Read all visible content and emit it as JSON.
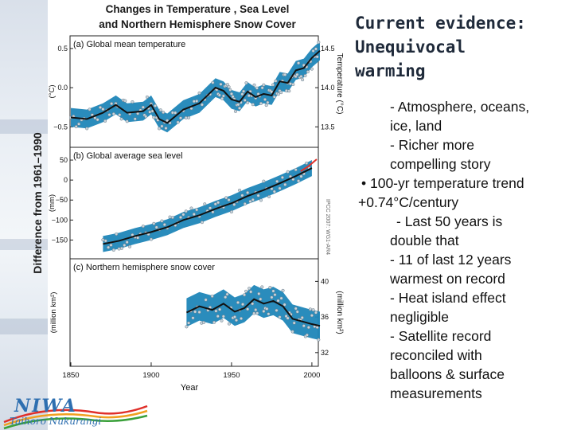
{
  "title": {
    "lines": [
      "Current evidence:",
      "Unequivocal",
      "warming"
    ]
  },
  "bullets": [
    {
      "text": "- Atmosphere, oceans,",
      "level": 2
    },
    {
      "text": "ice, land",
      "level": 2
    },
    {
      "text": "- Richer more",
      "level": 2
    },
    {
      "text": "compelling story",
      "level": 2
    },
    {
      "text": "• 100-yr temperature trend",
      "level": 1
    },
    {
      "text": "+0.74°C/century",
      "level": 0
    },
    {
      "text": "- Last 50 years is",
      "level": 3
    },
    {
      "text": "double that",
      "level": 2
    },
    {
      "text": "- 11 of last 12 years",
      "level": 2
    },
    {
      "text": "warmest on record",
      "level": 2
    },
    {
      "text": "- Heat island effect",
      "level": 2
    },
    {
      "text": "negligible",
      "level": 2
    },
    {
      "text": "- Satellite record",
      "level": 2
    },
    {
      "text": "reconciled with",
      "level": 2
    },
    {
      "text": "balloons & surface",
      "level": 2
    },
    {
      "text": "measurements",
      "level": 2
    }
  ],
  "logo": {
    "name": "NIWA",
    "subtitle": "Taihoro Nukurangi"
  },
  "colors": {
    "band": "#1f86b8",
    "line": "#111111",
    "dots": "#c9d4dc",
    "accent": "#e0302a"
  },
  "chart_data": {
    "type": "line",
    "title_lines": [
      "Changes in Temperature , Sea Level",
      "and Northern Hemisphere Snow Cover"
    ],
    "y_label_shared": "Difference from 1961–1990",
    "xlabel": "Year",
    "x_ticks": [
      1850,
      1900,
      1950,
      2000
    ],
    "xlim": [
      1850,
      2005
    ],
    "watermark": "IPCC 2007: WG1-AR4",
    "panels": [
      {
        "label": "(a) Global mean temperature",
        "ylabel_left": "(°C)",
        "ylabel_right": "Temperature (°C)",
        "ylim": [
          -0.7,
          0.6
        ],
        "left_ticks": [
          {
            "v": 0.5,
            "t": "0.5"
          },
          {
            "v": 0.0,
            "t": "0.0"
          },
          {
            "v": -0.5,
            "t": "−0.5"
          }
        ],
        "right_ticks": [
          {
            "v": 0.5,
            "t": "14.5"
          },
          {
            "v": 0.0,
            "t": "14.0"
          },
          {
            "v": -0.5,
            "t": "13.5"
          }
        ],
        "series": [
          {
            "name": "smoothed",
            "x": [
              1850,
              1860,
              1870,
              1878,
              1885,
              1895,
              1900,
              1905,
              1910,
              1920,
              1930,
              1940,
              1945,
              1950,
              1955,
              1960,
              1965,
              1970,
              1975,
              1980,
              1985,
              1990,
              1995,
              2000,
              2005
            ],
            "y": [
              -0.38,
              -0.4,
              -0.32,
              -0.22,
              -0.32,
              -0.3,
              -0.22,
              -0.4,
              -0.45,
              -0.28,
              -0.2,
              0.0,
              -0.04,
              -0.15,
              -0.18,
              -0.05,
              -0.12,
              -0.08,
              -0.1,
              0.08,
              0.06,
              0.22,
              0.25,
              0.38,
              0.47
            ]
          }
        ],
        "band_halfwidth": 0.12
      },
      {
        "label": "(b) Global average sea level",
        "ylabel_left": "(mm)",
        "ylim": [
          -185,
          70
        ],
        "left_ticks": [
          {
            "v": 50,
            "t": "50"
          },
          {
            "v": 0,
            "t": "0"
          },
          {
            "v": -50,
            "t": "−50"
          },
          {
            "v": -100,
            "t": "−100"
          },
          {
            "v": -150,
            "t": "−150"
          }
        ],
        "series": [
          {
            "name": "tide gauge",
            "x": [
              1870,
              1880,
              1890,
              1900,
              1910,
              1920,
              1930,
              1940,
              1950,
              1960,
              1970,
              1980,
              1990,
              2000
            ],
            "y": [
              -160,
              -152,
              -140,
              -130,
              -118,
              -100,
              -88,
              -72,
              -58,
              -40,
              -25,
              -8,
              10,
              30
            ]
          },
          {
            "name": "satellite",
            "x": [
              1993,
              1998,
              2003
            ],
            "y": [
              22,
              35,
              52
            ]
          }
        ],
        "band_halfwidth": 20
      },
      {
        "label": "(c) Northern hemisphere snow cover",
        "ylabel_left": "(million km²)",
        "ylabel_right": "(million km²)",
        "ylim": [
          31,
          42
        ],
        "right_ticks": [
          {
            "v": 40,
            "t": "40"
          },
          {
            "v": 36,
            "t": "36"
          },
          {
            "v": 32,
            "t": "32"
          }
        ],
        "series": [
          {
            "name": "smoothed",
            "x": [
              1922,
              1930,
              1938,
              1945,
              1952,
              1958,
              1964,
              1970,
              1976,
              1982,
              1988,
              1994,
              2000,
              2005
            ],
            "y": [
              36.5,
              37.2,
              36.8,
              37.5,
              36.6,
              37.0,
              38.0,
              37.5,
              37.8,
              37.2,
              35.8,
              35.5,
              35.2,
              35.0
            ]
          }
        ],
        "band_halfwidth": 1.6
      }
    ]
  }
}
